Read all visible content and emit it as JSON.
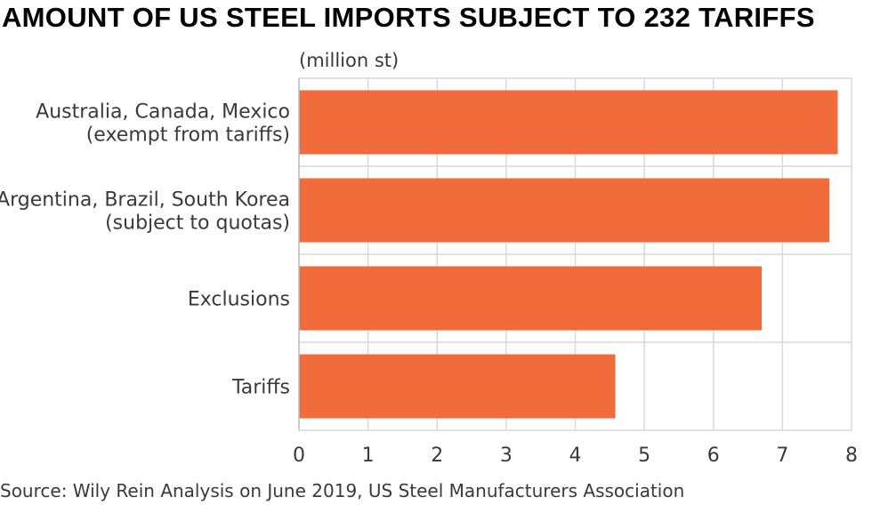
{
  "title": "AMOUNT OF US STEEL IMPORTS SUBJECT TO 232 TARIFFS",
  "unit_label": "(million st)",
  "source": "Source: Wily Rein Analysis on June 2019, US Steel Manufacturers Association",
  "colors": {
    "bar": "#f26b3a",
    "grid": "#d9d9d9",
    "axis": "#bfbfbf",
    "text": "#3a3a3a"
  },
  "chart_data": {
    "type": "bar",
    "orientation": "horizontal",
    "title": "AMOUNT OF US STEEL IMPORTS SUBJECT TO 232 TARIFFS",
    "xlabel": "(million st)",
    "ylabel": "",
    "xlim": [
      0,
      8
    ],
    "xticks": [
      "0",
      "1",
      "2",
      "3",
      "4",
      "5",
      "6",
      "7",
      "8"
    ],
    "grid": true,
    "categories": [
      [
        "Australia, Canada, Mexico",
        "(exempt from tariffs)"
      ],
      [
        "Argentina, Brazil, South Korea",
        "(subject to quotas)"
      ],
      [
        "Exclusions"
      ],
      [
        "Tariffs"
      ]
    ],
    "values": [
      7.8,
      7.68,
      6.7,
      4.58
    ]
  }
}
